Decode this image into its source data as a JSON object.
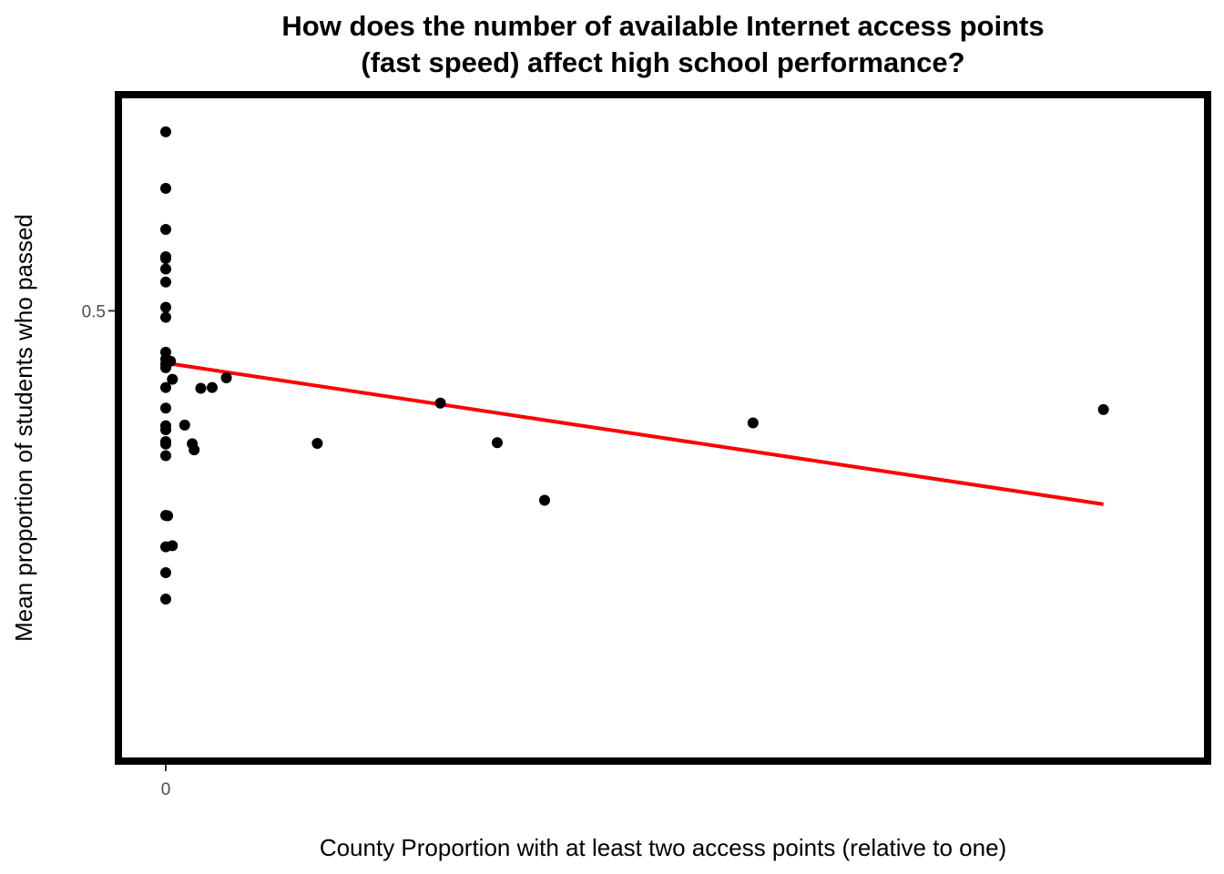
{
  "chart_data": {
    "type": "scatter",
    "title_lines": [
      "How does the number of available Internet access points",
      "(fast speed) affect high school performance?"
    ],
    "xlabel": "County Proportion with at least two access points (relative to one)",
    "ylabel": "Mean proportion of students who passed",
    "xlim": [
      -0.0005,
      0.011
    ],
    "ylim": [
      0.375,
      0.56
    ],
    "x_ticks": [
      {
        "value": 0,
        "label": "0"
      }
    ],
    "y_ticks": [
      {
        "value": 0.5,
        "label": "0.5"
      }
    ],
    "points": [
      {
        "x": 0.0,
        "y": 0.5497
      },
      {
        "x": 0.0,
        "y": 0.534
      },
      {
        "x": 0.0,
        "y": 0.5226
      },
      {
        "x": 0.0,
        "y": 0.515
      },
      {
        "x": 0.0,
        "y": 0.5145
      },
      {
        "x": 0.0,
        "y": 0.5116
      },
      {
        "x": 0.0,
        "y": 0.508
      },
      {
        "x": 0.0,
        "y": 0.501
      },
      {
        "x": 0.0,
        "y": 0.4982
      },
      {
        "x": 0.0,
        "y": 0.4885
      },
      {
        "x": 0.0,
        "y": 0.4866
      },
      {
        "x": 0.0,
        "y": 0.4853
      },
      {
        "x": 0.0,
        "y": 0.4842
      },
      {
        "x": 5e-05,
        "y": 0.486
      },
      {
        "x": 7e-05,
        "y": 0.481
      },
      {
        "x": 0.0,
        "y": 0.4787
      },
      {
        "x": 0.0,
        "y": 0.473
      },
      {
        "x": 0.0,
        "y": 0.4681
      },
      {
        "x": 0.0,
        "y": 0.467
      },
      {
        "x": 0.0,
        "y": 0.4637
      },
      {
        "x": 0.0,
        "y": 0.463
      },
      {
        "x": 0.0,
        "y": 0.4598
      },
      {
        "x": 0.0,
        "y": 0.4432
      },
      {
        "x": 2e-05,
        "y": 0.4431
      },
      {
        "x": 0.0,
        "y": 0.4345
      },
      {
        "x": 7e-05,
        "y": 0.4348
      },
      {
        "x": 0.0,
        "y": 0.4273
      },
      {
        "x": 0.0,
        "y": 0.42
      },
      {
        "x": 0.0002,
        "y": 0.4683
      },
      {
        "x": 0.00028,
        "y": 0.4631
      },
      {
        "x": 0.00037,
        "y": 0.4785
      },
      {
        "x": 0.00049,
        "y": 0.4787
      },
      {
        "x": 0.00064,
        "y": 0.4814
      },
      {
        "x": 0.0003,
        "y": 0.4614
      },
      {
        "x": 0.0016,
        "y": 0.4632
      },
      {
        "x": 0.0029,
        "y": 0.4744
      },
      {
        "x": 0.0035,
        "y": 0.4634
      },
      {
        "x": 0.004,
        "y": 0.4474
      },
      {
        "x": 0.0062,
        "y": 0.4689
      },
      {
        "x": 0.0099,
        "y": 0.4726
      }
    ],
    "trend_line": {
      "color": "#ff0000",
      "x": [
        0.0,
        0.0099
      ],
      "y": [
        0.4855,
        0.4463
      ]
    },
    "point_color": "#000000",
    "frame_color": "#000000",
    "grid": false
  }
}
